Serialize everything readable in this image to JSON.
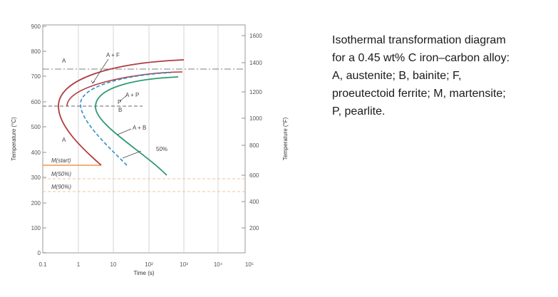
{
  "diagram": {
    "x_axis": {
      "title": "Time (s)",
      "ticks": [
        "0.1",
        "1",
        "10",
        "10²",
        "10³",
        "10⁴",
        "10⁵"
      ]
    },
    "y_axis_left": {
      "title": "Temperature (°C)",
      "ticks": [
        "0",
        "100",
        "200",
        "300",
        "400",
        "500",
        "600",
        "700",
        "800",
        "900"
      ]
    },
    "y_axis_right": {
      "title": "Temperature (°F)",
      "ticks": [
        "200",
        "400",
        "600",
        "800",
        "1000",
        "1200",
        "1400",
        "1600"
      ]
    },
    "region_labels": {
      "a_upper": "A",
      "a_plus_f": "A + F",
      "a_plus_p": "A + P",
      "p": "P",
      "b": "B",
      "a_plus_b": "A + B",
      "a_lower": "A",
      "fifty_percent": "50%",
      "m_start": "M(start)",
      "m_50": "M(50%)",
      "m_90": "M(90%)"
    },
    "colors": {
      "start_curve": "#b03a3f",
      "mid_curve": "#2f8fc4",
      "end_curve": "#2e9a72",
      "m_start_line": "#f0954a",
      "m_dashed_lines": "#f4c08e",
      "eutectoid_line": "#555555"
    }
  },
  "caption": {
    "lines": [
      "Isothermal transformation diagram",
      "for a 0.45 wt% C iron–carbon alloy:",
      "A, austenite; B, bainite; F,",
      "proeutectoid ferrite; M, martensite;",
      "P, pearlite."
    ]
  }
}
